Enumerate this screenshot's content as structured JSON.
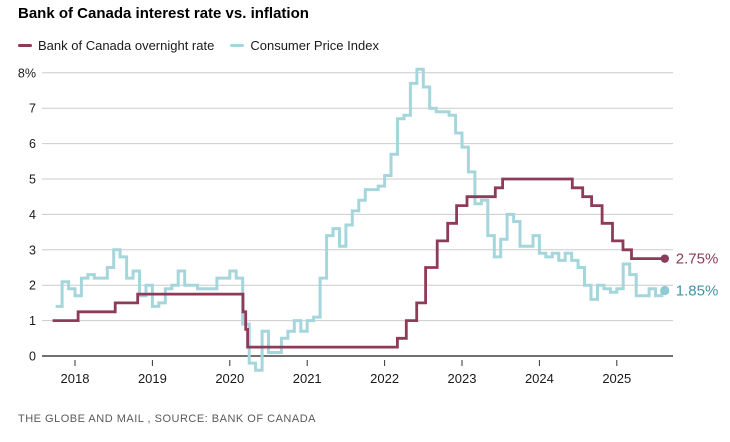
{
  "header": {
    "title": "Bank of Canada interest rate vs. inflation"
  },
  "footer": {
    "credit": "THE GLOBE AND MAIL , SOURCE: BANK OF CANADA"
  },
  "chart_data": {
    "type": "line",
    "subtype": "step-after",
    "title": "Bank of Canada interest rate vs. inflation",
    "grid": "horizontal",
    "legend_position": "top-left",
    "x_axis": {
      "ticks": [
        "2018",
        "2019",
        "2020",
        "2021",
        "2022",
        "2023",
        "2024",
        "2025"
      ],
      "tick_values": [
        2018,
        2019,
        2020,
        2021,
        2022,
        2023,
        2024,
        2025
      ],
      "range": [
        2017.68,
        2025.78
      ]
    },
    "y_axis": {
      "ticks": [
        {
          "v": 8,
          "label": "8%"
        },
        {
          "v": 7,
          "label": "7"
        },
        {
          "v": 6,
          "label": "6"
        },
        {
          "v": 5,
          "label": "5"
        },
        {
          "v": 4,
          "label": "4"
        },
        {
          "v": 3,
          "label": "3"
        },
        {
          "v": 2,
          "label": "2"
        },
        {
          "v": 1,
          "label": "1"
        },
        {
          "v": 0,
          "label": "0"
        }
      ],
      "range": [
        -0.6,
        8.2
      ]
    },
    "end": 2025.62,
    "colors": {
      "gridline": "#cccccc",
      "axis": "#1a1a1a",
      "tick_label": "#1a1a1a"
    },
    "series": [
      {
        "name": "Bank of Canada overnight rate",
        "color": "#8e3a59",
        "dot_color": "#8e3a59",
        "stroke_width": 2.8,
        "end_label": "2.75%",
        "end_label_color": "#8e3a59",
        "points": [
          [
            2017.71,
            1.0
          ],
          [
            2018.04,
            1.25
          ],
          [
            2018.52,
            1.5
          ],
          [
            2018.81,
            1.75
          ],
          [
            2020.17,
            1.25
          ],
          [
            2020.205,
            0.75
          ],
          [
            2020.23,
            0.25
          ],
          [
            2022.165,
            0.5
          ],
          [
            2022.28,
            1.0
          ],
          [
            2022.415,
            1.5
          ],
          [
            2022.53,
            2.5
          ],
          [
            2022.68,
            3.25
          ],
          [
            2022.815,
            3.75
          ],
          [
            2022.93,
            4.25
          ],
          [
            2023.065,
            4.5
          ],
          [
            2023.43,
            4.75
          ],
          [
            2023.525,
            5.0
          ],
          [
            2024.425,
            4.75
          ],
          [
            2024.56,
            4.5
          ],
          [
            2024.675,
            4.25
          ],
          [
            2024.81,
            3.75
          ],
          [
            2024.945,
            3.25
          ],
          [
            2025.08,
            3.0
          ],
          [
            2025.19,
            2.75
          ]
        ]
      },
      {
        "name": "Consumer Price Index",
        "color": "#a5d6dc",
        "dot_color": "#8fc9d3",
        "stroke_width": 3,
        "end_label": "1.85%",
        "end_label_color": "#3e93a3",
        "points": [
          [
            2017.75,
            1.4
          ],
          [
            2017.833,
            2.1
          ],
          [
            2017.917,
            1.9
          ],
          [
            2018.0,
            1.7
          ],
          [
            2018.083,
            2.2
          ],
          [
            2018.167,
            2.3
          ],
          [
            2018.25,
            2.2
          ],
          [
            2018.333,
            2.2
          ],
          [
            2018.417,
            2.5
          ],
          [
            2018.5,
            3.0
          ],
          [
            2018.583,
            2.8
          ],
          [
            2018.667,
            2.2
          ],
          [
            2018.75,
            2.4
          ],
          [
            2018.833,
            1.7
          ],
          [
            2018.917,
            2.0
          ],
          [
            2019.0,
            1.4
          ],
          [
            2019.083,
            1.5
          ],
          [
            2019.167,
            1.9
          ],
          [
            2019.25,
            2.0
          ],
          [
            2019.333,
            2.4
          ],
          [
            2019.417,
            2.0
          ],
          [
            2019.5,
            2.0
          ],
          [
            2019.583,
            1.9
          ],
          [
            2019.667,
            1.9
          ],
          [
            2019.75,
            1.9
          ],
          [
            2019.833,
            2.2
          ],
          [
            2019.917,
            2.2
          ],
          [
            2020.0,
            2.4
          ],
          [
            2020.083,
            2.2
          ],
          [
            2020.167,
            0.9
          ],
          [
            2020.25,
            -0.2
          ],
          [
            2020.333,
            -0.4
          ],
          [
            2020.417,
            0.7
          ],
          [
            2020.5,
            0.1
          ],
          [
            2020.583,
            0.1
          ],
          [
            2020.667,
            0.5
          ],
          [
            2020.75,
            0.7
          ],
          [
            2020.833,
            1.0
          ],
          [
            2020.917,
            0.7
          ],
          [
            2021.0,
            1.0
          ],
          [
            2021.083,
            1.1
          ],
          [
            2021.167,
            2.2
          ],
          [
            2021.25,
            3.4
          ],
          [
            2021.333,
            3.6
          ],
          [
            2021.417,
            3.1
          ],
          [
            2021.5,
            3.7
          ],
          [
            2021.583,
            4.1
          ],
          [
            2021.667,
            4.4
          ],
          [
            2021.75,
            4.7
          ],
          [
            2021.833,
            4.7
          ],
          [
            2021.917,
            4.8
          ],
          [
            2022.0,
            5.1
          ],
          [
            2022.083,
            5.7
          ],
          [
            2022.167,
            6.7
          ],
          [
            2022.25,
            6.8
          ],
          [
            2022.333,
            7.7
          ],
          [
            2022.417,
            8.1
          ],
          [
            2022.5,
            7.6
          ],
          [
            2022.583,
            7.0
          ],
          [
            2022.667,
            6.9
          ],
          [
            2022.75,
            6.9
          ],
          [
            2022.833,
            6.8
          ],
          [
            2022.917,
            6.3
          ],
          [
            2023.0,
            5.9
          ],
          [
            2023.083,
            5.2
          ],
          [
            2023.167,
            4.3
          ],
          [
            2023.25,
            4.4
          ],
          [
            2023.333,
            3.4
          ],
          [
            2023.417,
            2.8
          ],
          [
            2023.5,
            3.3
          ],
          [
            2023.583,
            4.0
          ],
          [
            2023.667,
            3.8
          ],
          [
            2023.75,
            3.1
          ],
          [
            2023.833,
            3.1
          ],
          [
            2023.917,
            3.4
          ],
          [
            2024.0,
            2.9
          ],
          [
            2024.083,
            2.8
          ],
          [
            2024.167,
            2.9
          ],
          [
            2024.25,
            2.7
          ],
          [
            2024.333,
            2.9
          ],
          [
            2024.417,
            2.7
          ],
          [
            2024.5,
            2.5
          ],
          [
            2024.583,
            2.0
          ],
          [
            2024.667,
            1.6
          ],
          [
            2024.75,
            2.0
          ],
          [
            2024.833,
            1.9
          ],
          [
            2024.917,
            1.8
          ],
          [
            2025.0,
            1.9
          ],
          [
            2025.083,
            2.6
          ],
          [
            2025.167,
            2.3
          ],
          [
            2025.25,
            1.7
          ],
          [
            2025.333,
            1.7
          ],
          [
            2025.417,
            1.9
          ],
          [
            2025.5,
            1.7
          ],
          [
            2025.583,
            1.85
          ]
        ]
      }
    ]
  }
}
